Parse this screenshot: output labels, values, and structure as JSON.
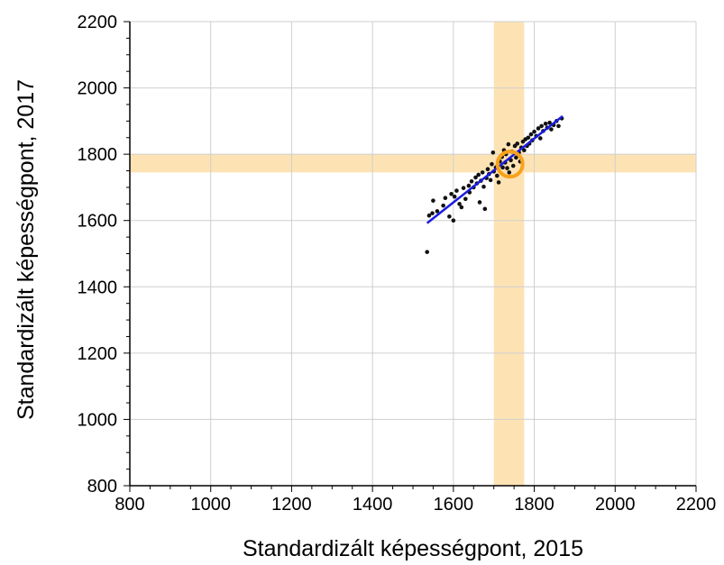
{
  "chart_data": {
    "type": "scatter",
    "title": "",
    "xlabel": "Standardizált képességpont, 2015",
    "ylabel": "Standardizált képességpont, 2017",
    "xlim": [
      800,
      2200
    ],
    "ylim": [
      800,
      2200
    ],
    "xticks": [
      800,
      1000,
      1200,
      1400,
      1600,
      1800,
      2000,
      2200
    ],
    "yticks": [
      800,
      1000,
      1200,
      1400,
      1600,
      1800,
      2000,
      2200
    ],
    "grid": true,
    "highlight_bands": {
      "color": "#FDE3B4",
      "vertical_x_range": [
        1700,
        1775
      ],
      "horizontal_y_range": [
        1745,
        1800
      ]
    },
    "highlight_point": {
      "x": 1740,
      "y": 1770,
      "color": "#F7A21B"
    },
    "trend_line": {
      "color": "#1B1BE0",
      "from": {
        "x": 1535,
        "y": 1592
      },
      "to": {
        "x": 1870,
        "y": 1915
      }
    },
    "points": [
      {
        "x": 1535,
        "y": 1505
      },
      {
        "x": 1540,
        "y": 1615
      },
      {
        "x": 1548,
        "y": 1622
      },
      {
        "x": 1550,
        "y": 1660
      },
      {
        "x": 1560,
        "y": 1628
      },
      {
        "x": 1575,
        "y": 1645
      },
      {
        "x": 1580,
        "y": 1668
      },
      {
        "x": 1590,
        "y": 1612
      },
      {
        "x": 1595,
        "y": 1680
      },
      {
        "x": 1600,
        "y": 1600
      },
      {
        "x": 1603,
        "y": 1672
      },
      {
        "x": 1608,
        "y": 1690
      },
      {
        "x": 1615,
        "y": 1650
      },
      {
        "x": 1620,
        "y": 1640
      },
      {
        "x": 1625,
        "y": 1698
      },
      {
        "x": 1630,
        "y": 1665
      },
      {
        "x": 1638,
        "y": 1705
      },
      {
        "x": 1640,
        "y": 1685
      },
      {
        "x": 1645,
        "y": 1718
      },
      {
        "x": 1650,
        "y": 1700
      },
      {
        "x": 1655,
        "y": 1730
      },
      {
        "x": 1658,
        "y": 1712
      },
      {
        "x": 1662,
        "y": 1738
      },
      {
        "x": 1665,
        "y": 1655
      },
      {
        "x": 1668,
        "y": 1720
      },
      {
        "x": 1672,
        "y": 1745
      },
      {
        "x": 1675,
        "y": 1702
      },
      {
        "x": 1678,
        "y": 1635
      },
      {
        "x": 1682,
        "y": 1728
      },
      {
        "x": 1685,
        "y": 1755
      },
      {
        "x": 1688,
        "y": 1740
      },
      {
        "x": 1692,
        "y": 1722
      },
      {
        "x": 1695,
        "y": 1770
      },
      {
        "x": 1698,
        "y": 1805
      },
      {
        "x": 1700,
        "y": 1748
      },
      {
        "x": 1705,
        "y": 1760
      },
      {
        "x": 1708,
        "y": 1735
      },
      {
        "x": 1712,
        "y": 1715
      },
      {
        "x": 1715,
        "y": 1778
      },
      {
        "x": 1720,
        "y": 1792
      },
      {
        "x": 1722,
        "y": 1760
      },
      {
        "x": 1725,
        "y": 1812
      },
      {
        "x": 1728,
        "y": 1775
      },
      {
        "x": 1730,
        "y": 1800
      },
      {
        "x": 1733,
        "y": 1758
      },
      {
        "x": 1736,
        "y": 1830
      },
      {
        "x": 1738,
        "y": 1745
      },
      {
        "x": 1742,
        "y": 1782
      },
      {
        "x": 1745,
        "y": 1808
      },
      {
        "x": 1748,
        "y": 1765
      },
      {
        "x": 1752,
        "y": 1825
      },
      {
        "x": 1755,
        "y": 1790
      },
      {
        "x": 1758,
        "y": 1832
      },
      {
        "x": 1762,
        "y": 1805
      },
      {
        "x": 1765,
        "y": 1778
      },
      {
        "x": 1768,
        "y": 1820
      },
      {
        "x": 1772,
        "y": 1838
      },
      {
        "x": 1775,
        "y": 1812
      },
      {
        "x": 1778,
        "y": 1845
      },
      {
        "x": 1782,
        "y": 1825
      },
      {
        "x": 1785,
        "y": 1850
      },
      {
        "x": 1788,
        "y": 1832
      },
      {
        "x": 1792,
        "y": 1860
      },
      {
        "x": 1795,
        "y": 1842
      },
      {
        "x": 1800,
        "y": 1868
      },
      {
        "x": 1805,
        "y": 1855
      },
      {
        "x": 1810,
        "y": 1878
      },
      {
        "x": 1815,
        "y": 1848
      },
      {
        "x": 1818,
        "y": 1885
      },
      {
        "x": 1822,
        "y": 1870
      },
      {
        "x": 1828,
        "y": 1892
      },
      {
        "x": 1832,
        "y": 1880
      },
      {
        "x": 1838,
        "y": 1895
      },
      {
        "x": 1842,
        "y": 1875
      },
      {
        "x": 1848,
        "y": 1888
      },
      {
        "x": 1855,
        "y": 1900
      },
      {
        "x": 1860,
        "y": 1885
      },
      {
        "x": 1868,
        "y": 1908
      }
    ]
  }
}
